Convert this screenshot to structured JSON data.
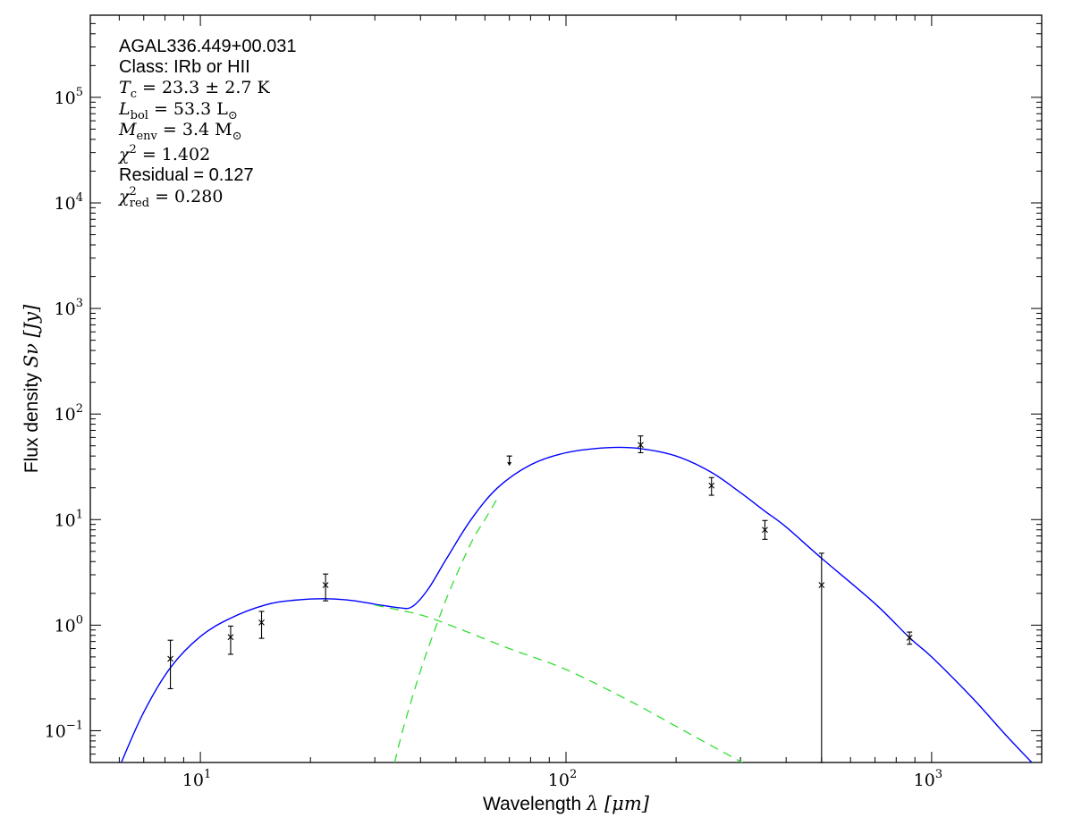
{
  "chart_data": {
    "type": "line",
    "xscale": "log",
    "yscale": "log",
    "xlim": [
      5,
      2000
    ],
    "ylim": [
      0.05,
      600000
    ],
    "xlabel_prefix": "Wavelength ",
    "xlabel_math": "λ [μm]",
    "ylabel_prefix": "Flux density ",
    "ylabel_math": "Sν [Jy]",
    "x_ticks": [
      {
        "base": "10",
        "exp": "1",
        "value": 10
      },
      {
        "base": "10",
        "exp": "2",
        "value": 100
      },
      {
        "base": "10",
        "exp": "3",
        "value": 1000
      }
    ],
    "y_ticks": [
      {
        "base": "10",
        "exp": "−1",
        "value": 0.1
      },
      {
        "base": "10",
        "exp": "0",
        "value": 1
      },
      {
        "base": "10",
        "exp": "1",
        "value": 10
      },
      {
        "base": "10",
        "exp": "2",
        "value": 100
      },
      {
        "base": "10",
        "exp": "3",
        "value": 1000
      },
      {
        "base": "10",
        "exp": "4",
        "value": 10000
      },
      {
        "base": "10",
        "exp": "5",
        "value": 100000
      }
    ],
    "annotations": {
      "source_name": "AGAL336.449+00.031",
      "class_text": "Class: IRb or HII",
      "tc": {
        "symbol": "T",
        "sub": "c",
        "rest": " = 23.3 ± 2.7 K"
      },
      "lbol": {
        "symbol": "L",
        "sub": "bol",
        "rest": " = 53.3 L",
        "rest_sub": "⊙"
      },
      "menv": {
        "symbol": "M",
        "sub": "env",
        "rest": " = 3.4 M",
        "rest_sub": "⊙"
      },
      "chi2": {
        "symbol": "χ",
        "sup": "2",
        "rest": " = 1.402"
      },
      "residual": "Residual = 0.127",
      "chi2red": {
        "symbol": "χ",
        "sup": "2",
        "sub": "red",
        "rest": " = 0.280"
      }
    },
    "colors": {
      "total_model": "#0000ff",
      "components": "#33dd33",
      "data": "#000000"
    },
    "measurements": [
      {
        "x": 8.28,
        "y": 0.48,
        "ylo": 0.25,
        "yhi": 0.72,
        "upper_limit": false
      },
      {
        "x": 12.1,
        "y": 0.77,
        "ylo": 0.53,
        "yhi": 0.98,
        "upper_limit": false
      },
      {
        "x": 14.7,
        "y": 1.06,
        "ylo": 0.75,
        "yhi": 1.35,
        "upper_limit": false
      },
      {
        "x": 22.0,
        "y": 2.4,
        "ylo": 1.7,
        "yhi": 3.05,
        "upper_limit": false
      },
      {
        "x": 70.0,
        "y": 40.0,
        "ylo": null,
        "yhi": null,
        "upper_limit": true
      },
      {
        "x": 160.0,
        "y": 51.0,
        "ylo": 43.0,
        "yhi": 62.0,
        "upper_limit": false
      },
      {
        "x": 250.0,
        "y": 21.0,
        "ylo": 17.0,
        "yhi": 25.0,
        "upper_limit": false
      },
      {
        "x": 350.0,
        "y": 8.0,
        "ylo": 6.5,
        "yhi": 9.8,
        "upper_limit": false
      },
      {
        "x": 500.0,
        "y": 2.4,
        "ylo": 0.05,
        "yhi": 4.8,
        "upper_limit": false
      },
      {
        "x": 870.0,
        "y": 0.76,
        "ylo": 0.66,
        "yhi": 0.86,
        "upper_limit": false
      }
    ],
    "series": [
      {
        "style": "solid",
        "color": "#0000ff",
        "x": [
          6.0,
          7.0,
          8.3,
          10.0,
          12.0,
          15.0,
          18.0,
          22.0,
          26.0,
          30.0,
          35.0,
          38.0,
          42.0,
          47.0,
          55.0,
          65.0,
          80.0,
          100.0,
          130.0,
          160.0,
          200.0,
          250.0,
          300.0,
          350.0,
          400.0,
          500.0,
          700.0,
          870.0,
          1000.0,
          1300.0,
          1600.0,
          1900.0
        ],
        "y": [
          0.045,
          0.15,
          0.4,
          0.78,
          1.15,
          1.55,
          1.72,
          1.78,
          1.71,
          1.58,
          1.46,
          1.5,
          2.2,
          4.2,
          10.0,
          20.0,
          33.0,
          43.0,
          48.0,
          47.0,
          40.0,
          28.0,
          18.0,
          12.0,
          8.5,
          4.3,
          1.6,
          0.76,
          0.5,
          0.2,
          0.09,
          0.048
        ]
      },
      {
        "style": "dashed",
        "color": "#33dd33",
        "x": [
          30.0,
          40.0,
          50.0,
          70.0,
          100.0,
          150.0,
          200.0,
          250.0,
          300.0,
          350.0
        ],
        "y": [
          1.55,
          1.25,
          0.95,
          0.6,
          0.38,
          0.19,
          0.11,
          0.072,
          0.051,
          0.037
        ]
      },
      {
        "style": "dashed",
        "color": "#33dd33",
        "x": [
          34.0,
          36.0,
          40.0,
          44.0,
          48.0,
          55.0,
          60.0,
          65.0
        ],
        "y": [
          0.05,
          0.11,
          0.37,
          0.95,
          2.1,
          6.0,
          10.0,
          16.0
        ]
      }
    ]
  }
}
